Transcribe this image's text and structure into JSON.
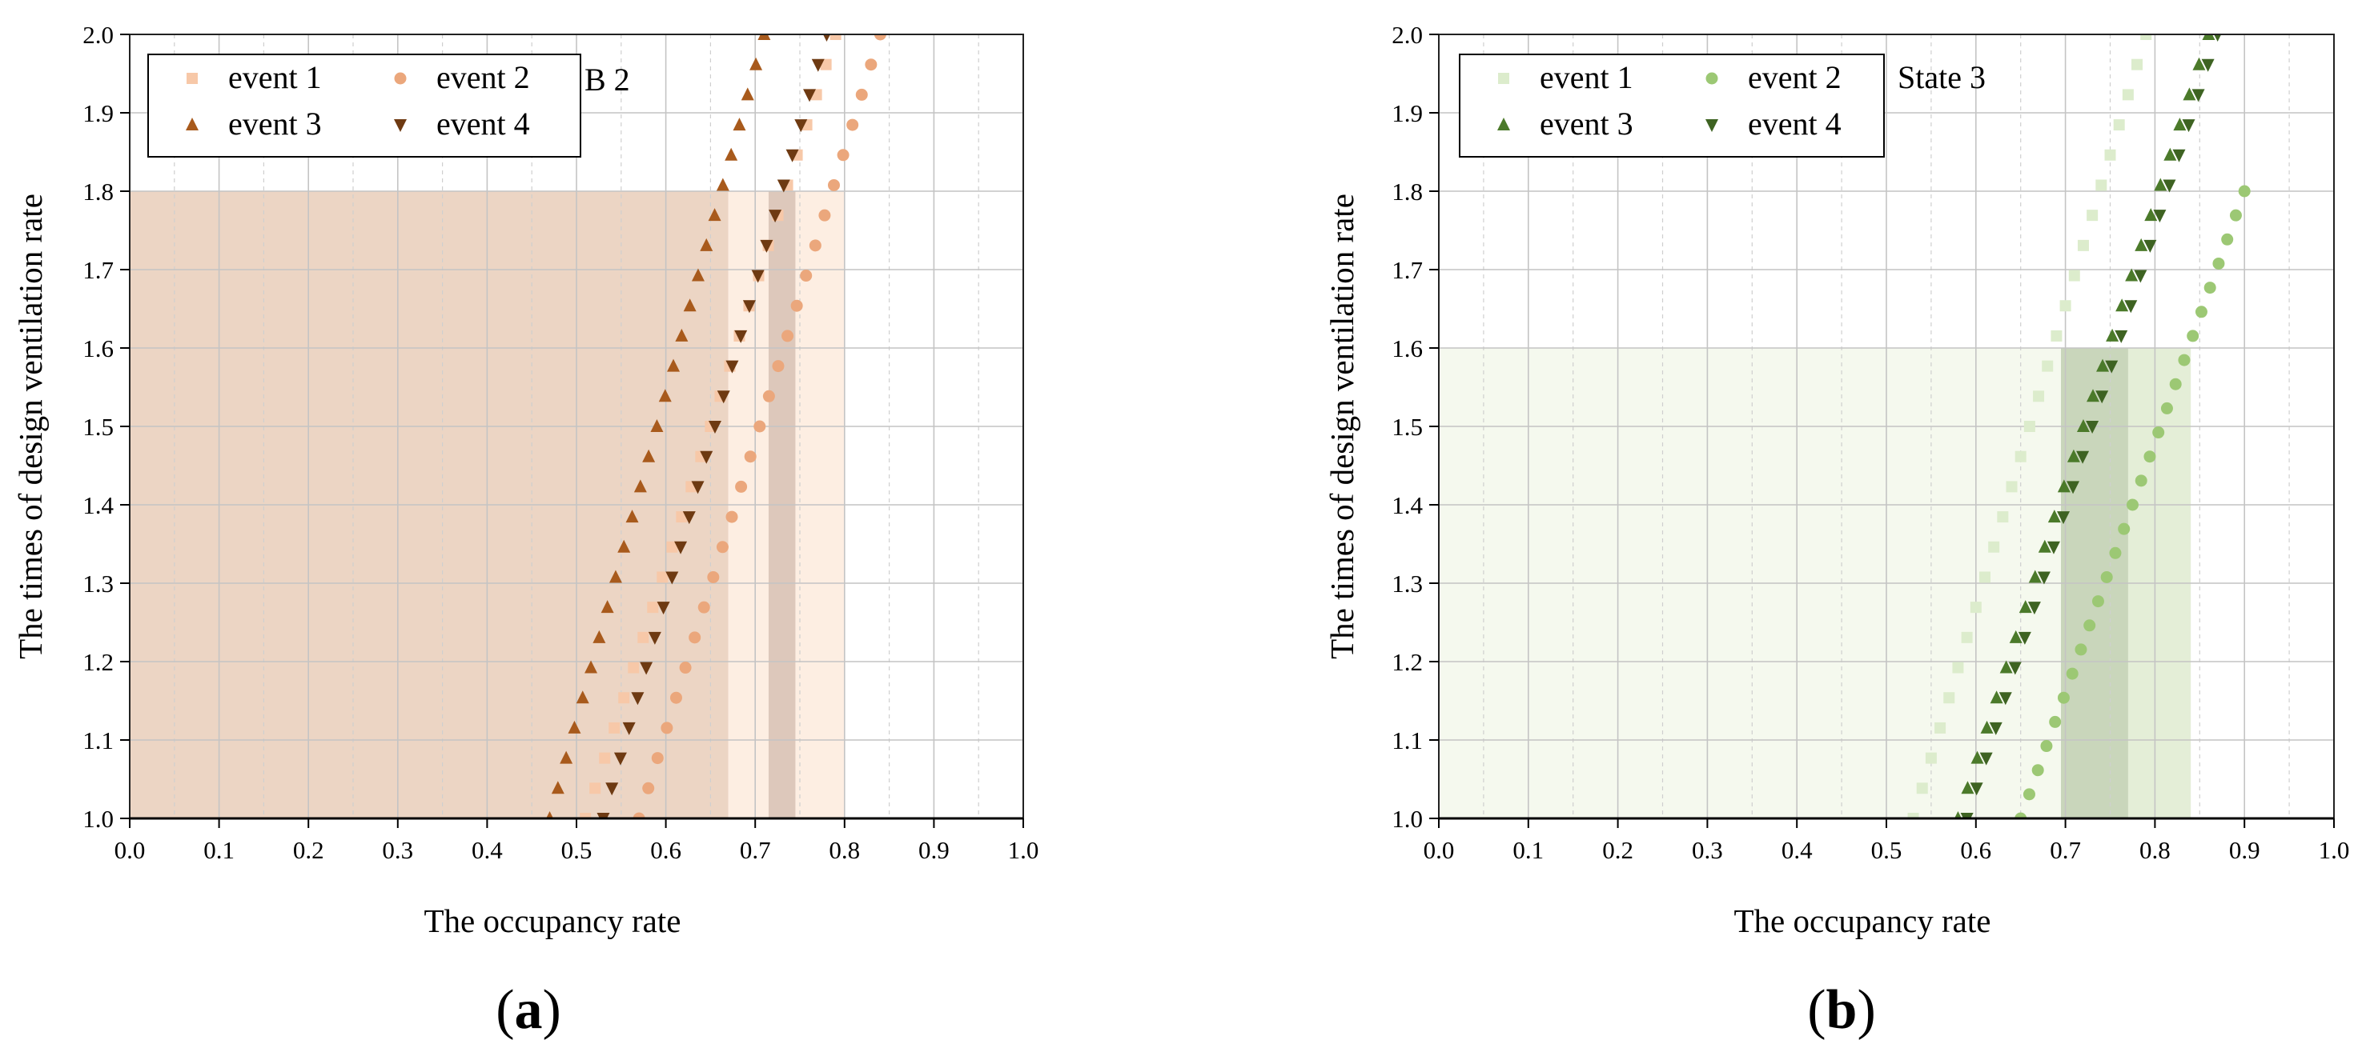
{
  "chart_data": [
    {
      "type": "scatter",
      "panel_label": "a",
      "annotation": "B 2",
      "xlabel": "The occupancy rate",
      "ylabel": "The times of design ventilation rate",
      "xlim": [
        0.0,
        1.0
      ],
      "ylim": [
        1.0,
        2.0
      ],
      "x_ticks": [
        "0.0",
        "0.1",
        "0.2",
        "0.3",
        "0.4",
        "0.5",
        "0.6",
        "0.7",
        "0.8",
        "0.9",
        "1.0"
      ],
      "y_ticks": [
        "1.0",
        "1.1",
        "1.2",
        "1.3",
        "1.4",
        "1.5",
        "1.6",
        "1.7",
        "1.8",
        "1.9",
        "2.0"
      ],
      "grid": true,
      "minor_grid": true,
      "legend_position": "top-left",
      "shaded_regions": [
        {
          "x": [
            0.0,
            0.67
          ],
          "y": [
            1.0,
            1.8
          ],
          "color": "#ecd5c4"
        },
        {
          "x": [
            0.67,
            0.8
          ],
          "y": [
            1.0,
            1.8
          ],
          "color": "#fdeee2"
        },
        {
          "x": [
            0.715,
            0.745
          ],
          "y": [
            1.0,
            1.8
          ],
          "color": "#ddc8bb"
        }
      ],
      "series": [
        {
          "name": "event 1",
          "marker": "square",
          "color": "#f7c8a8",
          "x_start": 0.51,
          "x_end": 0.79,
          "y_start": 1.0,
          "y_end": 2.0
        },
        {
          "name": "event 2",
          "marker": "circle",
          "color": "#eba77c",
          "x_start": 0.57,
          "x_end": 0.84,
          "y_start": 1.0,
          "y_end": 2.0
        },
        {
          "name": "event 3",
          "marker": "triangle-up",
          "color": "#a85a1c",
          "x_start": 0.47,
          "x_end": 0.71,
          "y_start": 1.0,
          "y_end": 2.0
        },
        {
          "name": "event 4",
          "marker": "triangle-down",
          "color": "#6e3a12",
          "x_start": 0.53,
          "x_end": 0.78,
          "y_start": 1.0,
          "y_end": 2.0
        }
      ]
    },
    {
      "type": "scatter",
      "panel_label": "b",
      "annotation": "State 3",
      "xlabel": "The occupancy rate",
      "ylabel": "The times of design ventilation rate",
      "xlim": [
        0.0,
        1.0
      ],
      "ylim": [
        1.0,
        2.0
      ],
      "x_ticks": [
        "0.0",
        "0.1",
        "0.2",
        "0.3",
        "0.4",
        "0.5",
        "0.6",
        "0.7",
        "0.8",
        "0.9",
        "1.0"
      ],
      "y_ticks": [
        "1.0",
        "1.1",
        "1.2",
        "1.3",
        "1.4",
        "1.5",
        "1.6",
        "1.7",
        "1.8",
        "1.9",
        "2.0"
      ],
      "grid": true,
      "minor_grid": true,
      "legend_position": "top-left",
      "shaded_regions": [
        {
          "x": [
            0.0,
            0.84
          ],
          "y": [
            1.0,
            1.6
          ],
          "color": "#f5f9ee"
        },
        {
          "x": [
            0.695,
            0.84
          ],
          "y": [
            1.0,
            1.6
          ],
          "color": "#e4eed7"
        },
        {
          "x": [
            0.695,
            0.77
          ],
          "y": [
            1.0,
            1.6
          ],
          "color": "#c9d6bb"
        }
      ],
      "series": [
        {
          "name": "event 1",
          "marker": "square",
          "color": "#dceccc",
          "x_start": 0.53,
          "x_end": 0.79,
          "y_start": 1.0,
          "y_end": 2.0
        },
        {
          "name": "event 2",
          "marker": "circle",
          "color": "#9cc874",
          "x_start": 0.65,
          "x_end": 0.9,
          "y_start": 1.0,
          "y_end": 1.8
        },
        {
          "name": "event 3",
          "marker": "triangle-up",
          "color": "#4b7a2a",
          "x_start": 0.58,
          "x_end": 0.86,
          "y_start": 1.0,
          "y_end": 2.0
        },
        {
          "name": "event 4",
          "marker": "triangle-down",
          "color": "#3e6322",
          "x_start": 0.59,
          "x_end": 0.87,
          "y_start": 1.0,
          "y_end": 2.0
        }
      ]
    }
  ]
}
